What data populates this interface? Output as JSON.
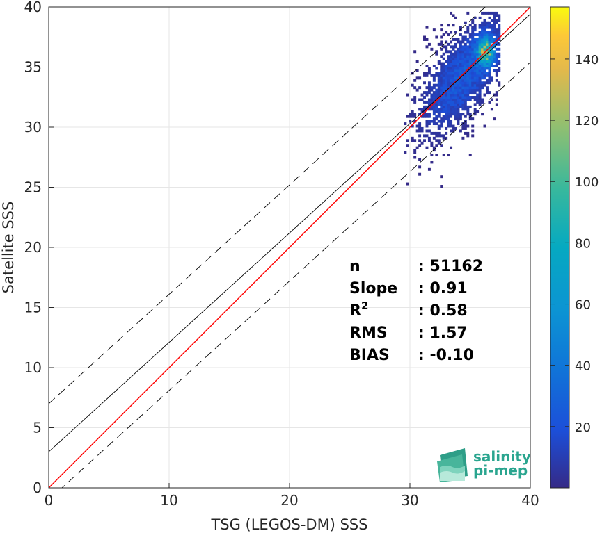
{
  "chart_data": {
    "type": "heatmap",
    "xlabel": "TSG (LEGOS-DM) SSS",
    "ylabel": "Satellite SSS",
    "xlim": [
      0,
      40
    ],
    "ylim": [
      0,
      40
    ],
    "x_ticks": [
      0,
      10,
      20,
      30,
      40
    ],
    "y_ticks": [
      0,
      5,
      10,
      15,
      20,
      25,
      30,
      35,
      40
    ],
    "grid": true,
    "colormap": "parula",
    "colorbar": {
      "range": [
        0,
        157
      ],
      "ticks": [
        20,
        40,
        60,
        80,
        100,
        120,
        140
      ]
    },
    "reference_lines": {
      "identity": {
        "slope": 1,
        "intercept": 0,
        "color": "#ff0000",
        "style": "solid"
      },
      "fit": {
        "slope": 0.91,
        "intercept": 3,
        "color": "#000000",
        "style": "solid"
      },
      "upper_bound": {
        "slope": 0.91,
        "intercept": 7,
        "color": "#000000",
        "style": "dashed"
      },
      "lower_bound": {
        "slope": 0.91,
        "intercept": -1,
        "color": "#000000",
        "style": "dashed"
      }
    },
    "density_cluster": {
      "x_range": [
        29.5,
        37.5
      ],
      "y_range": [
        23.8,
        39.6
      ],
      "peak": [
        36.2,
        36.2
      ],
      "peak_count": 157
    },
    "stats": [
      {
        "label": "n",
        "value": ": 51162"
      },
      {
        "label": "Slope",
        "value": ": 0.91"
      },
      {
        "label": "R",
        "sup": "2",
        "value": ": 0.58"
      },
      {
        "label": "RMS",
        "value": ": 1.57"
      },
      {
        "label": "BIAS",
        "value": ": -0.10"
      }
    ]
  },
  "logo": {
    "line1": "salinity",
    "line2": "pi-mep"
  },
  "colors": {
    "identity": "#ff0000",
    "fit": "#000000",
    "logo_text": "#2aa58f"
  }
}
